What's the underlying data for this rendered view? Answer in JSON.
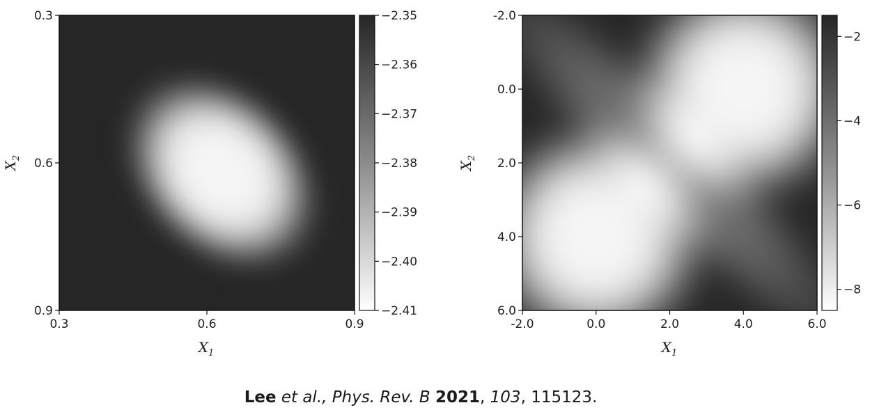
{
  "chart_data": [
    {
      "type": "heatmap",
      "xlabel": "X",
      "xlabel_sub": "1",
      "ylabel": "X",
      "ylabel_sub": "2",
      "x_range": [
        0.3,
        0.9
      ],
      "y_range": [
        0.3,
        0.9
      ],
      "y_inverted": true,
      "x_ticks": [
        "0.3",
        "0.6",
        "0.9"
      ],
      "y_ticks": [
        "0.3",
        "0.6",
        "0.9"
      ],
      "colormap": "gray",
      "colorbar": {
        "range": [
          -2.41,
          -2.35
        ],
        "ticks": [
          "−2.35",
          "−2.36",
          "−2.37",
          "−2.38",
          "−2.39",
          "−2.40",
          "−2.41"
        ],
        "tick_values": [
          -2.35,
          -2.36,
          -2.37,
          -2.38,
          -2.39,
          -2.4,
          -2.41
        ]
      },
      "minimum": {
        "x": 0.63,
        "y": 0.62,
        "value": -2.41
      },
      "background_value": -2.35
    },
    {
      "type": "heatmap",
      "xlabel": "X",
      "xlabel_sub": "1",
      "ylabel": "X",
      "ylabel_sub": "2",
      "x_range": [
        -2.0,
        6.0
      ],
      "y_range": [
        -2.0,
        6.0
      ],
      "y_inverted": true,
      "x_ticks": [
        "-2.0",
        "0.0",
        "2.0",
        "4.0",
        "6.0"
      ],
      "y_ticks": [
        "-2.0",
        "0.0",
        "2.0",
        "4.0",
        "6.0"
      ],
      "colormap": "gray",
      "colorbar": {
        "range": [
          -8.5,
          -1.5
        ],
        "ticks": [
          "−2",
          "−4",
          "−6",
          "−8"
        ],
        "tick_values": [
          -2,
          -4,
          -6,
          -8
        ]
      },
      "minima": [
        {
          "x": 0.0,
          "y": 4.0,
          "value": -8.5
        },
        {
          "x": 4.0,
          "y": 0.0,
          "value": -8.5
        }
      ],
      "background_value": -1.5
    }
  ],
  "citation": {
    "author": "Lee",
    "etal": "et al.,",
    "journal": "Phys. Rev. B",
    "year": "2021",
    "volume": "103",
    "page": "115123."
  }
}
